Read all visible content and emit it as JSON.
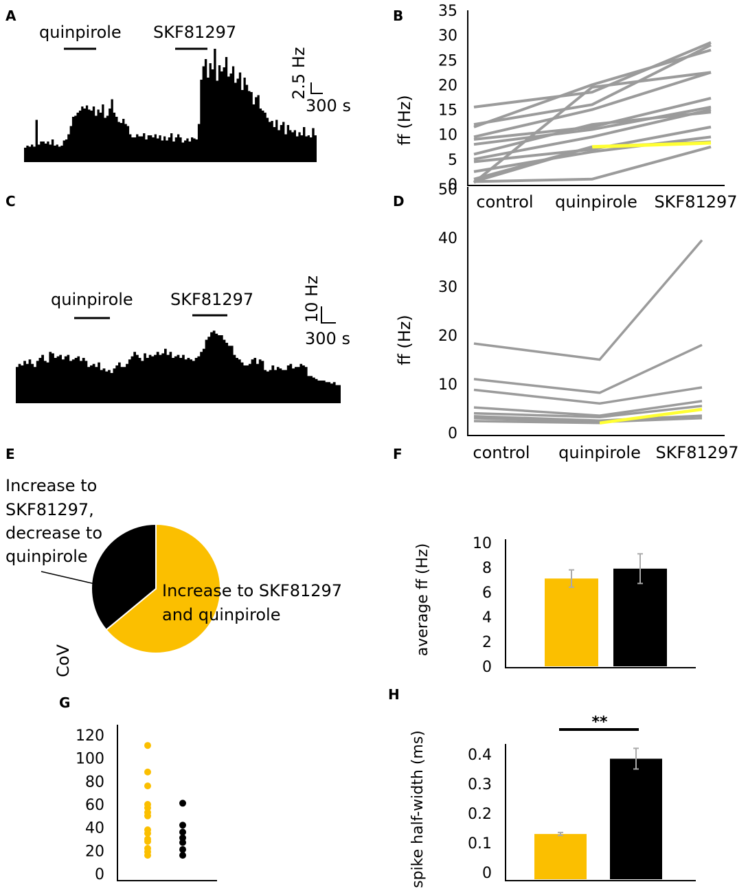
{
  "panels": {
    "A": {
      "label": "A",
      "drug1": "quinpirole",
      "drug2": "SKF81297",
      "scale_y": "2.5 Hz",
      "scale_x": "300 s",
      "trace": [
        1.4,
        1.6,
        1.5,
        1.7,
        1.5,
        4.1,
        1.7,
        2,
        2,
        1.8,
        2,
        1.7,
        2.2,
        1.6,
        1.7,
        1.5,
        1.6,
        2.1,
        2.2,
        2.7,
        3.5,
        4.4,
        4.5,
        4.8,
        5,
        5.4,
        5.2,
        5.5,
        5.1,
        5,
        5.4,
        4.5,
        5.1,
        4.8,
        5.6,
        4.3,
        4.5,
        5.2,
        6.1,
        4.8,
        4.4,
        3.9,
        3.8,
        4.2,
        3.7,
        3.5,
        2.7,
        2.4,
        2.4,
        2.7,
        2.5,
        2.5,
        2.8,
        2.2,
        2.6,
        2.6,
        2.4,
        2.7,
        2.3,
        2.6,
        2.1,
        2.5,
        2.1,
        2.4,
        2.8,
        2,
        2.4,
        2.7,
        2.4,
        1.9,
        2.1,
        2.3,
        2,
        2.4,
        2.3,
        2.2,
        3.7,
        8,
        9.3,
        10,
        8.2,
        9.6,
        9,
        11,
        7.9,
        9.4,
        8.8,
        9.2,
        10.2,
        8.3,
        8.6,
        9.3,
        7.7,
        8.1,
        8.7,
        7,
        8.2,
        7.5,
        6.9,
        6.8,
        5.6,
        6.3,
        6.5,
        5.2,
        5,
        4.8,
        4.3,
        3.9,
        4,
        3.4,
        4.1,
        3.1,
        3.6,
        3.9,
        2.7,
        3.6,
        3.1,
        2.9,
        3.1,
        2.5,
        2.9,
        2.6,
        3.4,
        2.5,
        2.6,
        2.4,
        3.3,
        2.6
      ]
    },
    "B": {
      "label": "B",
      "ylabel": "ff (Hz)",
      "categories": [
        "control",
        "quinpirole",
        "SKF81297"
      ],
      "yticks": [
        "0",
        "5",
        "10",
        "15",
        "20",
        "25",
        "30",
        "35"
      ],
      "ylim": [
        0,
        35
      ],
      "series": [
        [
          15.5,
          18.5,
          28.5
        ],
        [
          12,
          16,
          28
        ],
        [
          11.5,
          20,
          27
        ],
        [
          9.5,
          15,
          22.5
        ],
        [
          9,
          11.5,
          17.3
        ],
        [
          8,
          11,
          15.5
        ],
        [
          6,
          12,
          14.5
        ],
        [
          5,
          9.5,
          15
        ],
        [
          4.5,
          7,
          11.5
        ],
        [
          2.5,
          6.5,
          9.5
        ],
        [
          1,
          7.5,
          8.5
        ],
        [
          0.5,
          1,
          7.5
        ],
        [
          0.3,
          19.5,
          22.5
        ]
      ],
      "highlight": [
        0.5,
        7.5,
        8.3
      ]
    },
    "C": {
      "label": "C",
      "drug1": "quinpirole",
      "drug2": "SKF81297",
      "scale_y": "10 Hz",
      "scale_x": "300 s",
      "trace": [
        12,
        13,
        12.5,
        14,
        13,
        14.5,
        13,
        12,
        14,
        15,
        16,
        14,
        13.5,
        17,
        16.5,
        15,
        15.5,
        16,
        14.5,
        15.5,
        16,
        14,
        14.5,
        15,
        15.5,
        14,
        15,
        14,
        12,
        12.5,
        13,
        12,
        13.5,
        11,
        11.5,
        10.5,
        11,
        10,
        11.5,
        12.5,
        13.5,
        12,
        12,
        13,
        14.5,
        15.5,
        17,
        16,
        15,
        14,
        16.5,
        15,
        16,
        15.5,
        16,
        17,
        16,
        16.5,
        18,
        16,
        17,
        15,
        15.5,
        16,
        15,
        16,
        14.5,
        15,
        14.5,
        14,
        15,
        15.5,
        17,
        18,
        21,
        22,
        23.5,
        24,
        23,
        22.5,
        22.5,
        21,
        20,
        19,
        19,
        16,
        15,
        14.5,
        13.5,
        12.5,
        12.5,
        13,
        14.5,
        15,
        13,
        14.5,
        14,
        11,
        10.5,
        11,
        12.5,
        11,
        12,
        11.5,
        11,
        11,
        12.5,
        13,
        11.5,
        12,
        12,
        13,
        12.5,
        12,
        9,
        9,
        8.5,
        8,
        7.5,
        7.5,
        7.5,
        7,
        7,
        6.5,
        7,
        6,
        6
      ]
    },
    "D": {
      "label": "D",
      "ylabel": "ff (Hz)",
      "categories": [
        "control",
        "quinpirole",
        "SKF81297"
      ],
      "yticks": [
        "0",
        "10",
        "20",
        "30",
        "40",
        "50"
      ],
      "ylim": [
        0,
        50
      ],
      "series": [
        [
          18.3,
          15,
          39.5
        ],
        [
          11,
          8.2,
          18
        ],
        [
          8.8,
          6,
          9.3
        ],
        [
          5.2,
          3.5,
          6.5
        ],
        [
          4,
          3.2,
          5.5
        ],
        [
          3.4,
          2.5,
          3.5
        ],
        [
          3,
          2.2,
          3
        ]
      ],
      "highlight": [
        2.4,
        2,
        4.8
      ]
    },
    "E": {
      "label": "E",
      "black_label_1": "Increase to",
      "black_label_2": "SKF81297,",
      "black_label_3": "decrease to",
      "black_label_4": "quinpirole",
      "yellow_label_1": "Increase to SKF81297",
      "yellow_label_2": "and quinpirole",
      "fractions": [
        0.64,
        0.36
      ]
    },
    "F": {
      "label": "F",
      "ylabel": "average ff (Hz)",
      "yticks": [
        "0",
        "2",
        "4",
        "6",
        "8",
        "10"
      ],
      "ylim": [
        0,
        10
      ],
      "values": [
        7.1,
        7.9
      ],
      "errors": [
        0.7,
        1.2
      ]
    },
    "G": {
      "label": "G",
      "ylabel": "CoV",
      "yticks": [
        "0",
        "20",
        "40",
        "60",
        "80",
        "100",
        "120"
      ],
      "ylim": [
        0,
        120
      ],
      "yellow_points": [
        111,
        88,
        76,
        60,
        57,
        53,
        50,
        38,
        35,
        30,
        28,
        22,
        19,
        16
      ],
      "black_points": [
        61,
        42,
        36,
        31,
        27,
        21,
        16
      ]
    },
    "H": {
      "label": "H",
      "ylabel": "spike half-width (ms)",
      "yticks": [
        "0",
        "0.1",
        "0.2",
        "0.3",
        "0.4"
      ],
      "ylim": [
        0,
        0.45
      ],
      "values": [
        0.13,
        0.385
      ],
      "errors": [
        0.005,
        0.035
      ],
      "significance": "**"
    }
  },
  "colors": {
    "yellow": "#fbbf00",
    "black": "#000000",
    "gray": "#9b9b9b",
    "highlight": "#ffff33",
    "errbar": "#aaaaaa"
  }
}
